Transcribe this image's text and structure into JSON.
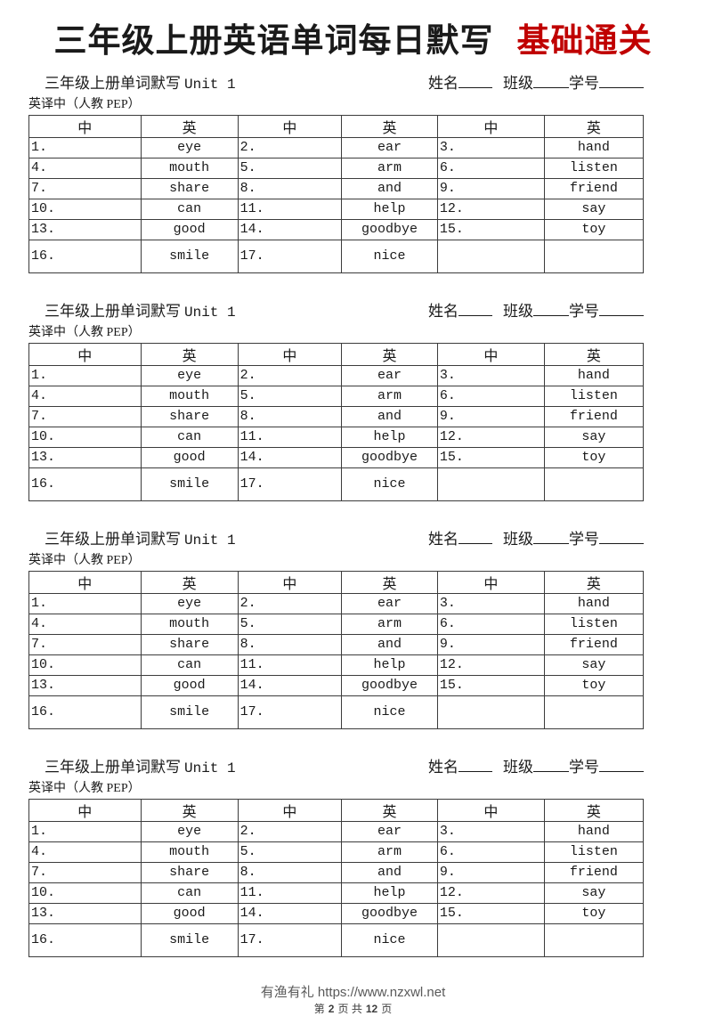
{
  "page": {
    "title": "三年级上册英语单词每日默写",
    "title_accent": "基础通关",
    "accent_color": "#c00000"
  },
  "sections_count": 4,
  "section": {
    "heading_cn": "三年级上册单词默写",
    "heading_unit": "Unit 1",
    "labels": {
      "name": "姓名",
      "class": "班级",
      "student_id": "学号"
    },
    "subheading": "英译中（人教 PEP）",
    "col_headers": [
      "中",
      "英",
      "中",
      "英",
      "中",
      "英"
    ],
    "col_widths": [
      "18.2%",
      "15.8%",
      "16.9%",
      "15.6%",
      "17.4%",
      "16.1%"
    ],
    "rows": [
      [
        {
          "num": "1.",
          "word": "eye"
        },
        {
          "num": "2.",
          "word": "ear"
        },
        {
          "num": "3.",
          "word": "hand"
        }
      ],
      [
        {
          "num": "4.",
          "word": "mouth"
        },
        {
          "num": "5.",
          "word": "arm"
        },
        {
          "num": "6.",
          "word": "listen"
        }
      ],
      [
        {
          "num": "7.",
          "word": "share"
        },
        {
          "num": "8.",
          "word": "and"
        },
        {
          "num": "9.",
          "word": "friend"
        }
      ],
      [
        {
          "num": "10.",
          "word": "can"
        },
        {
          "num": "11.",
          "word": "help"
        },
        {
          "num": "12.",
          "word": "say"
        }
      ],
      [
        {
          "num": "13.",
          "word": "good"
        },
        {
          "num": "14.",
          "word": "goodbye"
        },
        {
          "num": "15.",
          "word": "toy"
        }
      ],
      [
        {
          "num": "16.",
          "word": "smile"
        },
        {
          "num": "17.",
          "word": "nice"
        },
        {
          "num": "",
          "word": ""
        }
      ]
    ]
  },
  "footer": {
    "site": "有渔有礼 https://www.nzxwl.net",
    "page_prefix": "第",
    "page_current": "2",
    "page_mid": "页 共",
    "page_total": "12",
    "page_suffix": "页"
  }
}
